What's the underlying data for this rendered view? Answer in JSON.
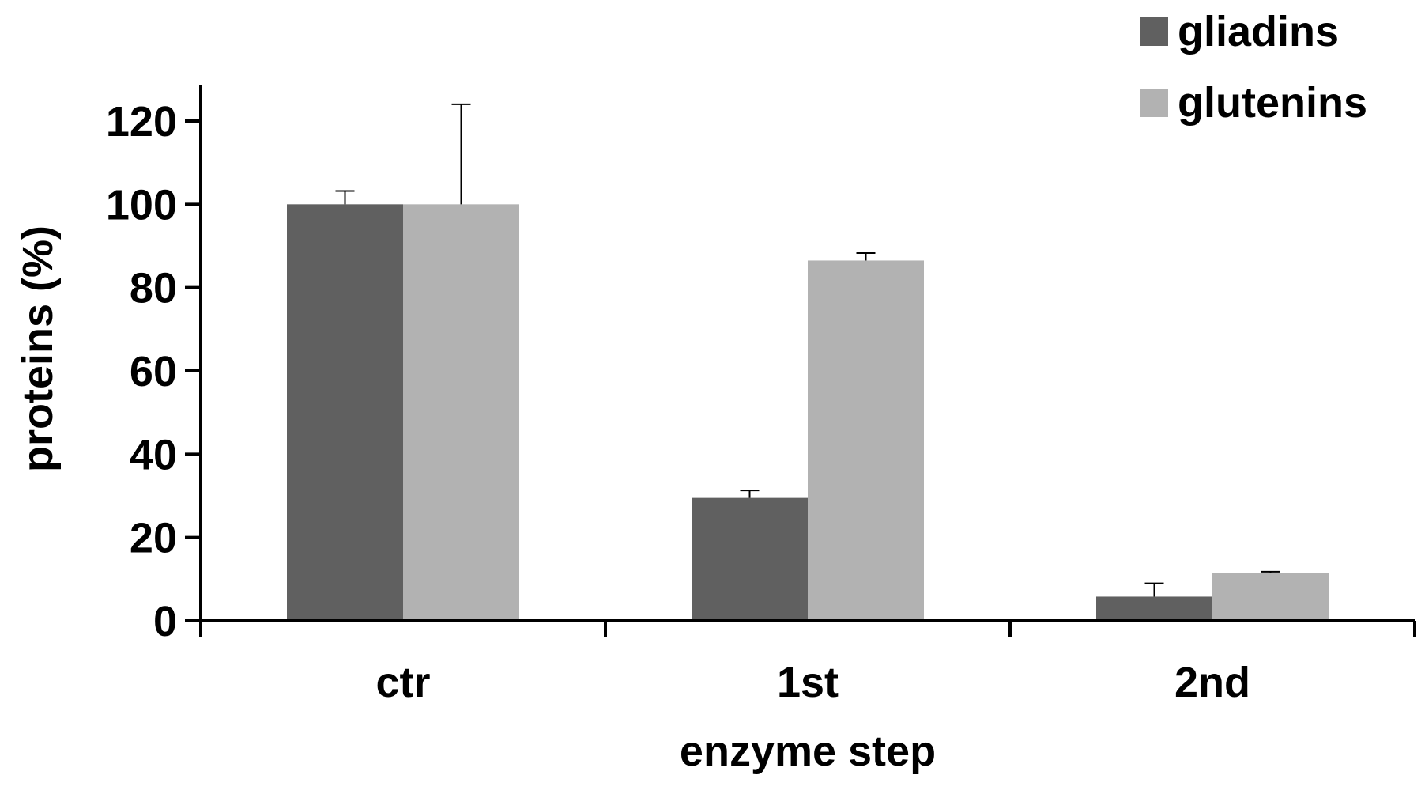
{
  "chart_data": {
    "type": "bar",
    "categories": [
      "ctr",
      "1st",
      "2nd"
    ],
    "series": [
      {
        "name": "gliadins",
        "values": [
          100,
          29.5,
          5.8
        ],
        "errors": [
          3.2,
          1.8,
          3.2
        ],
        "color": "#606060"
      },
      {
        "name": "glutenins",
        "values": [
          100,
          86.5,
          11.5
        ],
        "errors": [
          24,
          1.8,
          0.3
        ],
        "color": "#b2b2b2"
      }
    ],
    "xlabel": "enzyme step",
    "ylabel": "proteins (%)",
    "ylim": [
      0,
      120
    ],
    "yticks": [
      0,
      20,
      40,
      60,
      80,
      100,
      120
    ],
    "legend_position": "top-right",
    "grid": false
  }
}
